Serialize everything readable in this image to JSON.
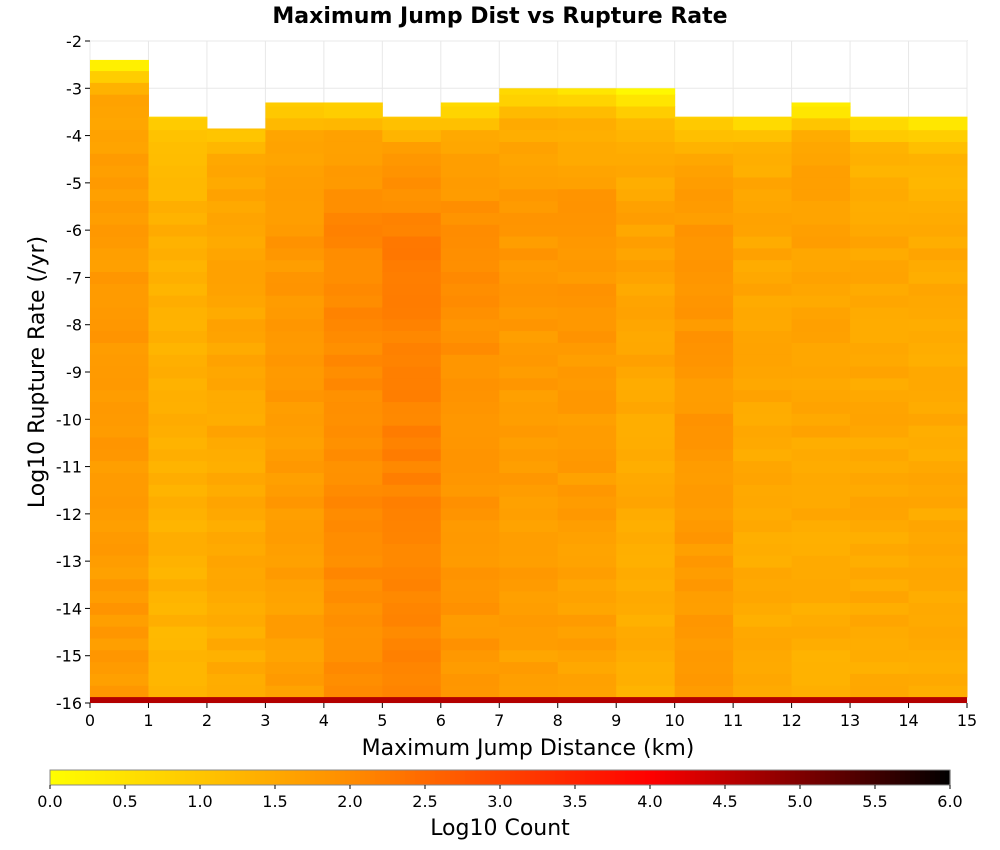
{
  "chart_data": {
    "type": "heatmap",
    "title": "Maximum Jump Dist vs Rupture Rate",
    "xlabel": "Maximum Jump Distance (km)",
    "ylabel": "Log10 Rupture Rate (/yr)",
    "xlim": [
      0,
      15
    ],
    "ylim": [
      -16,
      -2
    ],
    "x_ticks": [
      "0",
      "1",
      "2",
      "3",
      "4",
      "5",
      "6",
      "7",
      "8",
      "9",
      "10",
      "11",
      "12",
      "13",
      "14",
      "15"
    ],
    "y_ticks": [
      "-2",
      "-3",
      "-4",
      "-5",
      "-6",
      "-7",
      "-8",
      "-9",
      "-10",
      "-11",
      "-12",
      "-13",
      "-14",
      "-15",
      "-16"
    ],
    "x_bin_width": 1,
    "y_bin_width": 0.25,
    "colorbar": {
      "label": "Log10 Count",
      "range": [
        0,
        6
      ],
      "ticks": [
        "0.0",
        "0.5",
        "1.0",
        "1.5",
        "2.0",
        "2.5",
        "3.0",
        "3.5",
        "4.0",
        "4.5",
        "5.0",
        "5.5",
        "6.0"
      ],
      "colors": [
        "#ffff00",
        "#ff8c00",
        "#ff0000",
        "#000000"
      ]
    },
    "bottom_row": {
      "y_range": [
        -16,
        -15.875
      ],
      "value": 4.6
    },
    "columns": [
      {
        "x_range": [
          0,
          1
        ],
        "top": -2.4,
        "value_top": 0.3,
        "value_upper": 1.6,
        "value_core": 1.75,
        "value_bottom": 1.75
      },
      {
        "x_range": [
          1,
          2
        ],
        "top": -3.6,
        "value_top": 0.8,
        "value_upper": 1.2,
        "value_core": 1.4,
        "value_bottom": 1.3
      },
      {
        "x_range": [
          2,
          3
        ],
        "top": -3.85,
        "value_top": 1.1,
        "value_upper": 1.5,
        "value_core": 1.55,
        "value_bottom": 1.45
      },
      {
        "x_range": [
          3,
          4
        ],
        "top": -3.3,
        "value_top": 0.8,
        "value_upper": 1.55,
        "value_core": 1.8,
        "value_bottom": 1.65
      },
      {
        "x_range": [
          4,
          5
        ],
        "top": -3.3,
        "value_top": 0.8,
        "value_upper": 1.6,
        "value_core": 2.05,
        "value_bottom": 1.95
      },
      {
        "x_range": [
          5,
          6
        ],
        "top": -3.6,
        "value_top": 1.0,
        "value_upper": 1.75,
        "value_core": 2.2,
        "value_bottom": 2.05
      },
      {
        "x_range": [
          6,
          7
        ],
        "top": -3.3,
        "value_top": 0.7,
        "value_upper": 1.5,
        "value_core": 1.95,
        "value_bottom": 1.8
      },
      {
        "x_range": [
          7,
          8
        ],
        "top": -3.0,
        "value_top": 0.6,
        "value_upper": 1.4,
        "value_core": 1.8,
        "value_bottom": 1.65
      },
      {
        "x_range": [
          8,
          9
        ],
        "top": -3.0,
        "value_top": 0.5,
        "value_upper": 1.4,
        "value_core": 1.85,
        "value_bottom": 1.6
      },
      {
        "x_range": [
          9,
          10
        ],
        "top": -3.0,
        "value_top": 0.15,
        "value_upper": 1.3,
        "value_core": 1.6,
        "value_bottom": 1.4
      },
      {
        "x_range": [
          10,
          11
        ],
        "top": -3.6,
        "value_top": 0.8,
        "value_upper": 1.5,
        "value_core": 1.85,
        "value_bottom": 1.7
      },
      {
        "x_range": [
          11,
          12
        ],
        "top": -3.6,
        "value_top": 0.6,
        "value_upper": 1.45,
        "value_core": 1.55,
        "value_bottom": 1.45
      },
      {
        "x_range": [
          12,
          13
        ],
        "top": -3.3,
        "value_top": 0.4,
        "value_upper": 1.55,
        "value_core": 1.6,
        "value_bottom": 1.4
      },
      {
        "x_range": [
          13,
          14
        ],
        "top": -3.6,
        "value_top": 0.6,
        "value_upper": 1.3,
        "value_core": 1.55,
        "value_bottom": 1.45
      },
      {
        "x_range": [
          14,
          15
        ],
        "top": -3.6,
        "value_top": 0.4,
        "value_upper": 1.2,
        "value_core": 1.5,
        "value_bottom": 1.45
      }
    ]
  }
}
